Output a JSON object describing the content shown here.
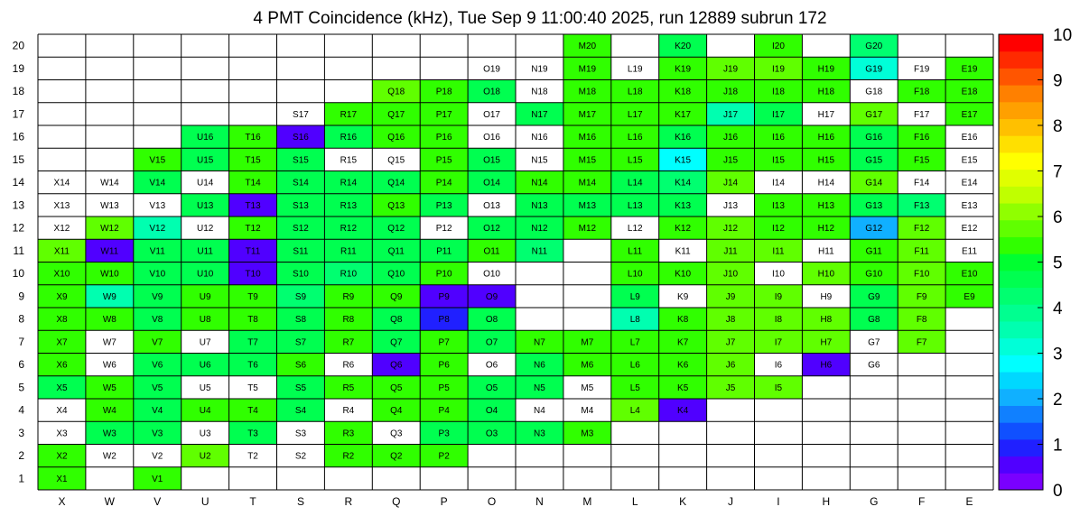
{
  "chart_data": {
    "type": "heatmap",
    "title": "4 PMT Coincidence (kHz), Tue Sep  9 11:00:40 2025, run 12889 subrun 172",
    "x_categories": [
      "X",
      "W",
      "V",
      "U",
      "T",
      "S",
      "R",
      "Q",
      "P",
      "O",
      "N",
      "M",
      "L",
      "K",
      "J",
      "I",
      "H",
      "G",
      "F",
      "E"
    ],
    "y_categories": [
      "1",
      "2",
      "3",
      "4",
      "5",
      "6",
      "7",
      "8",
      "9",
      "10",
      "11",
      "12",
      "13",
      "14",
      "15",
      "16",
      "17",
      "18",
      "19",
      "20"
    ],
    "zlim": [
      0,
      10
    ],
    "colorbar_ticks": [
      "0",
      "1",
      "2",
      "3",
      "4",
      "5",
      "6",
      "7",
      "8",
      "9",
      "10"
    ],
    "colorbar_colors": [
      "#7a00ff",
      "#5000ff",
      "#2020ff",
      "#1050ff",
      "#1080ff",
      "#10b0ff",
      "#00d8ff",
      "#00ffff",
      "#00ffd8",
      "#00ffb0",
      "#00ff90",
      "#00ff70",
      "#00ff50",
      "#00ff30",
      "#30ff00",
      "#60ff00",
      "#90ff00",
      "#c0ff00",
      "#e0ff00",
      "#ffff00",
      "#ffe000",
      "#ffc000",
      "#ffa000",
      "#ff8000",
      "#ff5500",
      "#ff2a00",
      "#ff0000"
    ],
    "rows": {
      "20": {
        "X": null,
        "W": null,
        "V": null,
        "U": null,
        "T": null,
        "S": null,
        "R": null,
        "Q": null,
        "P": null,
        "O": null,
        "N": null,
        "M": 5.2,
        "L": null,
        "K": 4.8,
        "J": null,
        "I": 5.3,
        "H": null,
        "G": 4.2,
        "F": null,
        "E": null
      },
      "19": {
        "X": null,
        "W": null,
        "V": null,
        "U": null,
        "T": null,
        "S": null,
        "R": null,
        "Q": null,
        "P": null,
        "O": 0,
        "N": 0,
        "M": 5.2,
        "L": 0,
        "K": 5.2,
        "J": 5.6,
        "I": 5.6,
        "H": 5.2,
        "G": 3.0,
        "F": 0,
        "E": 5.5
      },
      "18": {
        "X": null,
        "W": null,
        "V": null,
        "U": null,
        "T": null,
        "S": null,
        "R": null,
        "Q": 5.6,
        "P": 5.2,
        "O": 4.8,
        "N": 0,
        "M": 5.2,
        "L": 5.2,
        "K": 5.2,
        "J": 5.2,
        "I": 5.2,
        "H": 5.2,
        "G": 0,
        "F": 5.5,
        "E": 5.2
      },
      "17": {
        "X": null,
        "W": null,
        "V": null,
        "U": null,
        "T": null,
        "S": 0,
        "R": 5.2,
        "Q": 5.2,
        "P": 5.2,
        "O": 0,
        "N": 4.8,
        "M": 5.2,
        "L": 5.2,
        "K": 5.2,
        "J": 3.4,
        "I": 4.8,
        "H": 0,
        "G": 5.6,
        "F": 0,
        "E": 5.5
      },
      "16": {
        "X": null,
        "W": null,
        "V": null,
        "U": 4.8,
        "T": 5.2,
        "S": 0.5,
        "R": 4.8,
        "Q": 5.2,
        "P": 5.2,
        "O": 0,
        "N": 0,
        "M": 5.2,
        "L": 5.2,
        "K": 4.8,
        "J": 5.2,
        "I": 5.2,
        "H": 5.2,
        "G": 4.8,
        "F": 5.2,
        "E": 0
      },
      "15": {
        "X": null,
        "W": null,
        "V": 5.2,
        "U": 4.8,
        "T": 5.2,
        "S": 4.8,
        "R": 0,
        "Q": 0,
        "P": 5.2,
        "O": 4.8,
        "N": 0,
        "M": 5.2,
        "L": 5.2,
        "K": 2.8,
        "J": 5.2,
        "I": 5.2,
        "H": 5.2,
        "G": 4.8,
        "F": 5.2,
        "E": 0
      },
      "14": {
        "X": 0,
        "W": 0,
        "V": 4.8,
        "U": 0,
        "T": 5.2,
        "S": 4.8,
        "R": 4.8,
        "Q": 4.6,
        "P": 5.2,
        "O": 4.8,
        "N": 5.2,
        "L": 4.8,
        "M": 5.2,
        "K": 4.2,
        "J": 5.6,
        "I": 0,
        "H": 0,
        "G": 5.6,
        "F": 0,
        "E": 0
      },
      "13": {
        "X": 0,
        "W": 0,
        "V": 0,
        "U": 4.8,
        "T": 0.5,
        "S": 4.8,
        "R": 4.8,
        "Q": 5.2,
        "P": 4.8,
        "O": 0,
        "N": 4.8,
        "M": 4.8,
        "L": 4.8,
        "K": 4.8,
        "J": 0,
        "I": 5.2,
        "H": 5.2,
        "G": 4.8,
        "F": 4.4,
        "E": 0
      },
      "12": {
        "X": 0,
        "W": 5.6,
        "V": 3.4,
        "U": 0,
        "T": 5.2,
        "S": 4.8,
        "R": 4.8,
        "Q": 4.8,
        "P": 0,
        "O": 4.8,
        "N": 4.8,
        "M": 5.2,
        "L": 0,
        "K": 5.2,
        "J": 5.6,
        "I": 5.2,
        "H": 5.2,
        "G": 2.2,
        "F": 5.6,
        "E": 0
      },
      "11": {
        "X": 5.6,
        "W": 0.5,
        "V": 4.8,
        "U": 4.8,
        "T": 0.5,
        "S": 4.8,
        "R": 4.8,
        "Q": 4.8,
        "P": 4.8,
        "O": 5.2,
        "N": 4.2,
        "M": null,
        "L": 5.2,
        "K": 0,
        "J": 5.6,
        "I": 5.6,
        "H": 0,
        "G": 5.2,
        "F": 5.6,
        "E": 0
      },
      "10": {
        "X": 5.2,
        "W": 5.2,
        "V": 4.8,
        "U": 4.8,
        "T": 0.5,
        "S": 4.8,
        "R": 4.4,
        "Q": 4.8,
        "P": 5.2,
        "O": 0,
        "N": null,
        "M": null,
        "L": 5.2,
        "K": 5.2,
        "J": 5.6,
        "I": 0,
        "H": 5.6,
        "G": 5.2,
        "F": 5.6,
        "E": 5.5
      },
      "9": {
        "X": 5.2,
        "W": 3.4,
        "V": 4.8,
        "U": 5.2,
        "T": 5.2,
        "S": 4.4,
        "R": 5.2,
        "Q": 5.2,
        "P": 0.7,
        "O": 0.7,
        "N": null,
        "M": null,
        "L": 4.8,
        "K": 0,
        "J": 5.6,
        "I": 5.6,
        "H": 0,
        "G": 4.6,
        "F": 5.6,
        "E": 5.2
      },
      "8": {
        "X": 5.2,
        "W": 5.2,
        "V": 4.8,
        "U": 5.2,
        "T": 5.2,
        "S": 4.8,
        "R": 5.2,
        "Q": 4.8,
        "P": 1.0,
        "O": 4.8,
        "N": null,
        "M": null,
        "L": 3.4,
        "K": 5.2,
        "J": 5.6,
        "I": 5.6,
        "H": 5.6,
        "G": 4.8,
        "F": 5.6,
        "E": null
      },
      "7": {
        "X": 5.2,
        "W": 0,
        "V": 5.2,
        "U": 0,
        "T": 4.8,
        "S": 4.8,
        "R": 5.2,
        "Q": 4.8,
        "P": 5.2,
        "O": 4.8,
        "N": 5.2,
        "M": 5.2,
        "L": 5.2,
        "K": 5.2,
        "J": 5.6,
        "I": 5.6,
        "H": 5.6,
        "G": 0,
        "F": 5.6,
        "E": null
      },
      "6": {
        "X": 5.2,
        "W": 0,
        "V": 4.8,
        "U": 4.8,
        "T": 4.8,
        "S": 5.2,
        "R": 0,
        "Q": 0.5,
        "P": 5.2,
        "O": 0,
        "N": 4.8,
        "M": 5.2,
        "L": 5.2,
        "K": 5.2,
        "J": 5.6,
        "I": 0,
        "H": 0.5,
        "G": 0,
        "F": null,
        "E": null
      },
      "5": {
        "X": 4.6,
        "W": 5.2,
        "V": 4.8,
        "U": 0,
        "T": 0,
        "S": 4.8,
        "R": 5.2,
        "Q": 5.2,
        "P": 5.2,
        "O": 4.8,
        "N": 4.8,
        "M": 0,
        "L": 5.2,
        "K": 5.2,
        "J": 5.6,
        "I": 5.6,
        "H": null,
        "G": null,
        "F": null,
        "E": null
      },
      "4": {
        "X": 0,
        "W": 5.2,
        "V": 4.8,
        "U": 5.2,
        "T": 5.2,
        "S": 4.8,
        "R": 0,
        "Q": 5.2,
        "P": 5.2,
        "O": 4.8,
        "N": 0,
        "M": 0,
        "L": 5.6,
        "K": 0.5,
        "J": null,
        "I": null,
        "H": null,
        "G": null,
        "F": null,
        "E": null
      },
      "3": {
        "X": 0,
        "W": 4.8,
        "V": 4.6,
        "U": 0,
        "T": 4.8,
        "S": 0,
        "R": 5.2,
        "Q": 0,
        "P": 4.6,
        "O": 4.6,
        "N": 4.8,
        "M": 5.2,
        "L": null,
        "K": null,
        "J": null,
        "I": null,
        "H": null,
        "G": null,
        "F": null,
        "E": null
      },
      "2": {
        "X": 5.2,
        "W": 0,
        "V": 0,
        "U": 5.6,
        "T": 0,
        "S": 0,
        "R": 5.2,
        "Q": 5.2,
        "P": 5.2,
        "O": null,
        "N": null,
        "M": null,
        "L": null,
        "K": null,
        "J": null,
        "I": null,
        "H": null,
        "G": null,
        "F": null,
        "E": null
      },
      "1": {
        "X": 5.2,
        "W": null,
        "V": 5.2,
        "U": null,
        "T": null,
        "S": null,
        "R": null,
        "Q": null,
        "P": null,
        "O": null,
        "N": null,
        "M": null,
        "L": null,
        "K": null,
        "J": null,
        "I": null,
        "H": null,
        "G": null,
        "F": null,
        "E": null
      }
    }
  }
}
